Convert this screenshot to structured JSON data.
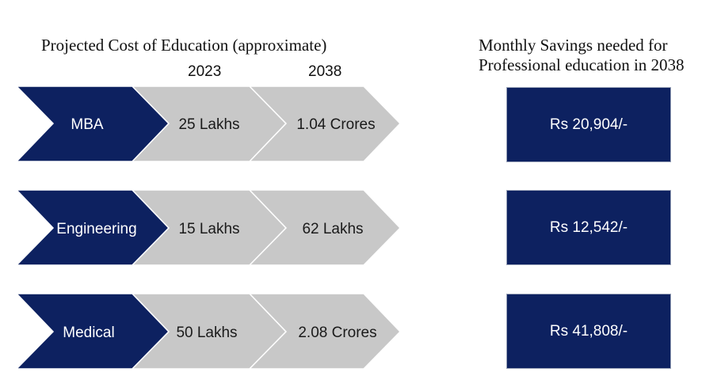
{
  "title": "Projected Cost of Education (approximate)",
  "savings_title_line1": "Monthly Savings needed for",
  "savings_title_line2": "Professional education in 2038",
  "years": {
    "start": "2023",
    "end": "2038"
  },
  "colors": {
    "navy": "#0d2160",
    "grey": "#c8c8c8",
    "grey_stroke": "#ffffff",
    "background": "#ffffff"
  },
  "rows": [
    {
      "label": "MBA",
      "cost_2023": "25 Lakhs",
      "cost_2038": "1.04 Crores",
      "monthly_savings": "Rs 20,904/-"
    },
    {
      "label": "Engineering",
      "cost_2023": "15 Lakhs",
      "cost_2038": "62 Lakhs",
      "monthly_savings": "Rs 12,542/-"
    },
    {
      "label": "Medical",
      "cost_2023": "50 Lakhs",
      "cost_2038": "2.08 Crores",
      "monthly_savings": "Rs 41,808/-"
    }
  ]
}
